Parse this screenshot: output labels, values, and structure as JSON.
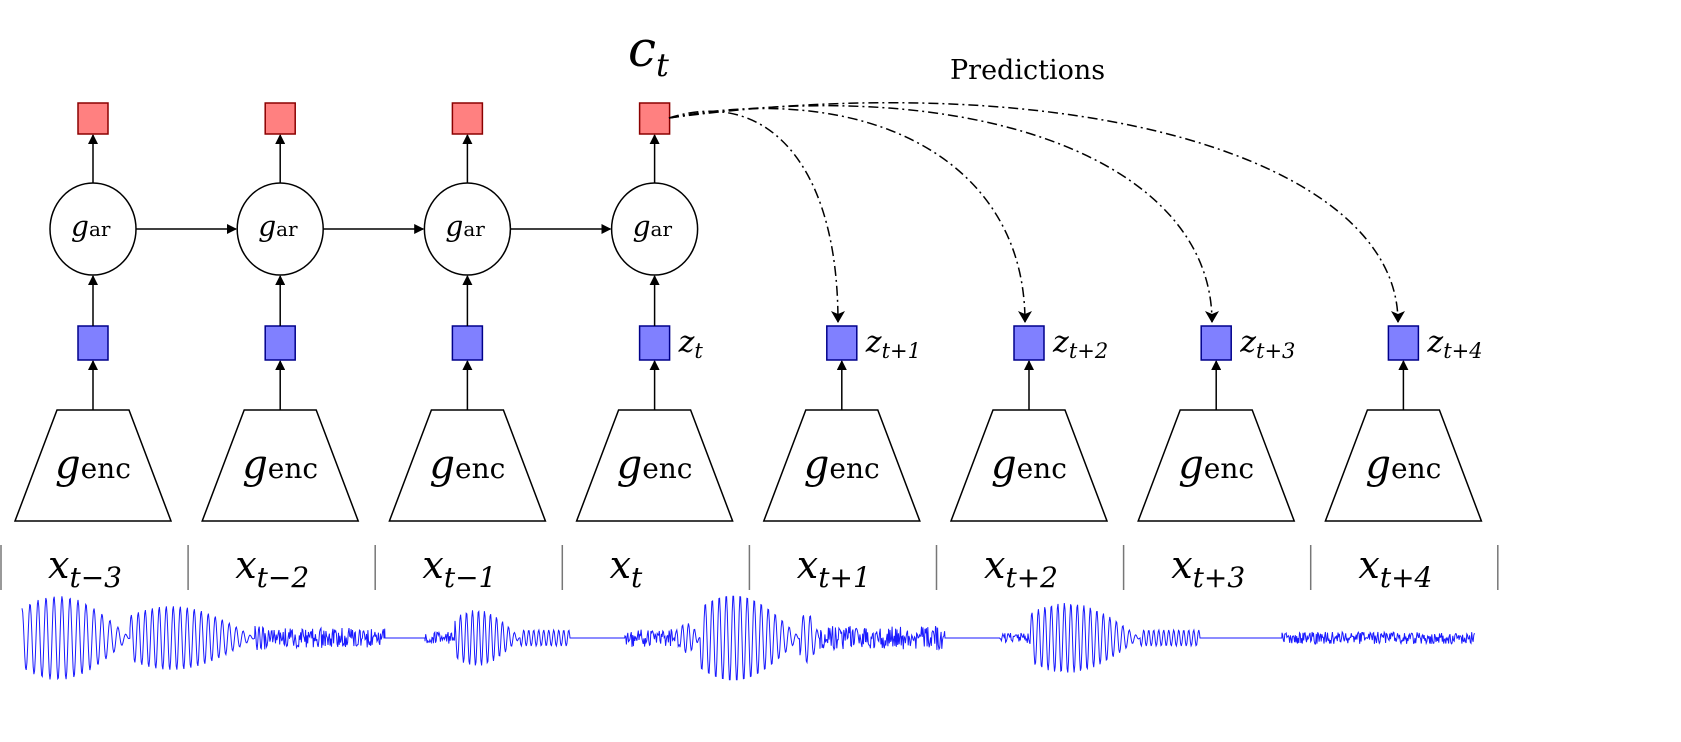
{
  "context_label": {
    "main": "c",
    "sub": "t"
  },
  "predictions_label": "Predictions",
  "ar_label": {
    "main": "g",
    "sub": "ar"
  },
  "enc_label": {
    "main": "g",
    "sub": "enc"
  },
  "columns": [
    {
      "x_sub": "t−3",
      "z_sub": ""
    },
    {
      "x_sub": "t−2",
      "z_sub": ""
    },
    {
      "x_sub": "t−1",
      "z_sub": ""
    },
    {
      "x_sub": "t",
      "z_sub": "t"
    },
    {
      "x_sub": "t+1",
      "z_sub": "t+1"
    },
    {
      "x_sub": "t+2",
      "z_sub": "t+2"
    },
    {
      "x_sub": "t+3",
      "z_sub": "t+3"
    },
    {
      "x_sub": "t+4",
      "z_sub": "t+4"
    }
  ],
  "input_symbol": "x",
  "latent_symbol": "z",
  "colors": {
    "context_box": "#ff8080",
    "context_border": "#8b0000",
    "latent_box": "#8080ff",
    "latent_border": "#00008b",
    "waveform": "#1a1aff"
  }
}
